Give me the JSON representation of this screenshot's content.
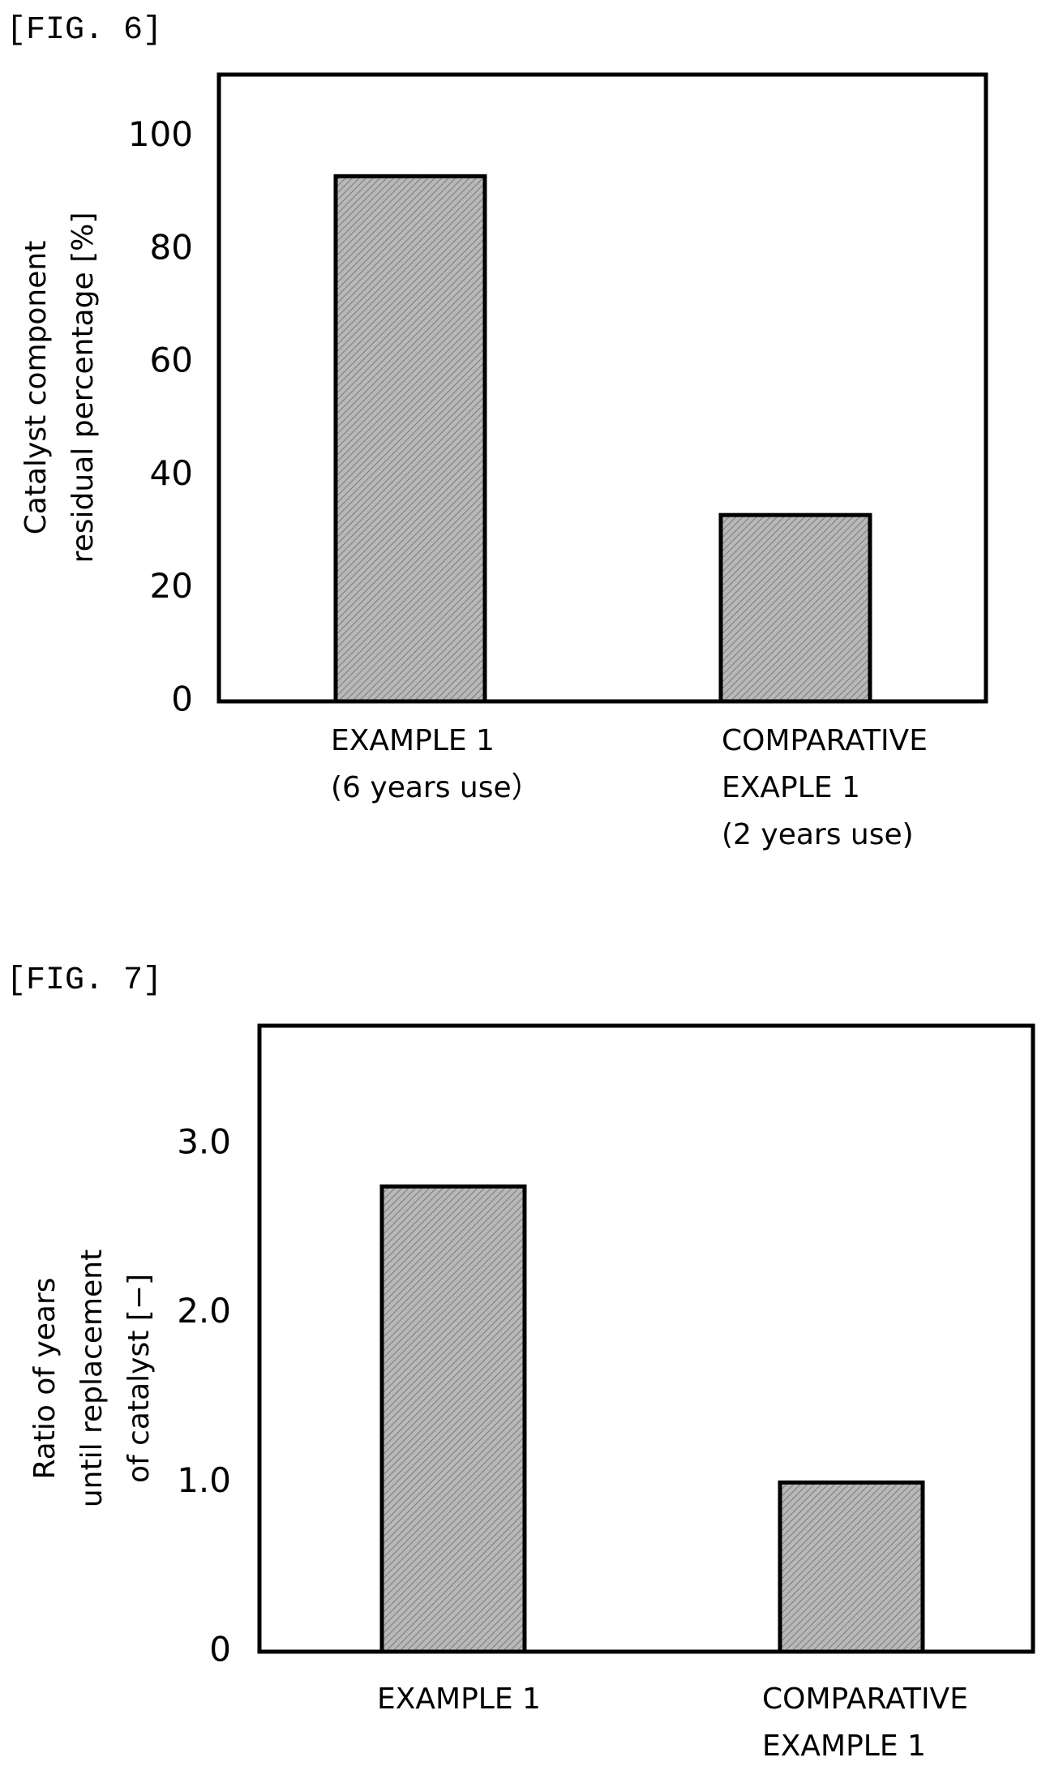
{
  "figures": [
    {
      "label": "[FIG. 6]"
    },
    {
      "label": "[FIG. 7]"
    }
  ],
  "colors": {
    "bar_fill": "#b8b8b8",
    "bar_hatch": "#7a7a7a",
    "frame": "#000000"
  },
  "chart_data": [
    {
      "type": "bar",
      "categories": [
        [
          "EXAMPLE 1",
          "(6 years use）"
        ],
        [
          "COMPARATIVE",
          "EXAPLE 1",
          "(2 years use)"
        ]
      ],
      "values": [
        93,
        33
      ],
      "ylabel": [
        "Catalyst component",
        "residual percentage [%]"
      ],
      "yticks": [
        "0",
        "20",
        "40",
        "60",
        "80",
        "100"
      ],
      "ytick_values": [
        0,
        20,
        40,
        60,
        80,
        100
      ],
      "ylim": [
        0,
        111
      ],
      "grid": false
    },
    {
      "type": "bar",
      "categories": [
        [
          "EXAMPLE 1"
        ],
        [
          "COMPARATIVE",
          "EXAMPLE 1"
        ]
      ],
      "values": [
        2.75,
        1.0
      ],
      "ylabel": [
        "Ratio of years",
        "until replacement",
        "of catalyst  [−]"
      ],
      "yticks": [
        "0",
        "1.0",
        "2.0",
        "3.0"
      ],
      "ytick_values": [
        0,
        1,
        2,
        3
      ],
      "ylim": [
        0,
        3.7
      ],
      "grid": false
    }
  ]
}
